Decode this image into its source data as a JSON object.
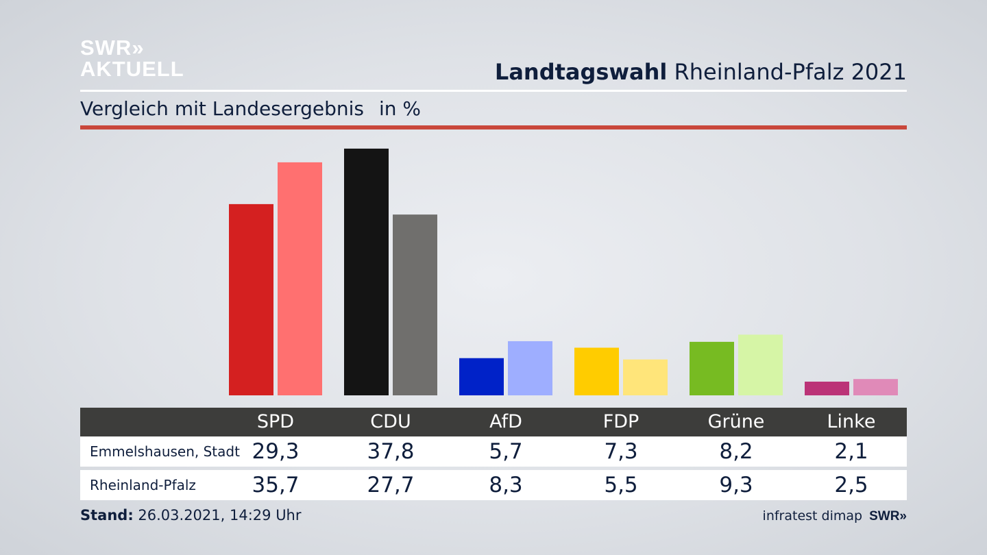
{
  "logo": {
    "line1": "SWR»",
    "line2": "AKTUELL"
  },
  "header": {
    "title_bold": "Landtagswahl",
    "title_rest": "Rheinland-Pfalz 2021"
  },
  "subheader": {
    "label": "Vergleich mit Landesergebnis",
    "unit": "in %"
  },
  "colors": {
    "accent_red": "#c9473b",
    "table_header": "#3d3d3b",
    "text": "#0f1e3c"
  },
  "chart_data": {
    "type": "bar",
    "categories": [
      "SPD",
      "CDU",
      "AfD",
      "FDP",
      "Grüne",
      "Linke"
    ],
    "series": [
      {
        "name": "Emmelshausen, Stadt",
        "values": [
          29.3,
          37.8,
          5.7,
          7.3,
          8.2,
          2.1
        ],
        "display": [
          "29,3",
          "37,8",
          "5,7",
          "7,3",
          "8,2",
          "2,1"
        ],
        "colors": [
          "#d42020",
          "#141414",
          "#0022c8",
          "#ffcc00",
          "#77bb22",
          "#bb3377"
        ]
      },
      {
        "name": "Rheinland-Pfalz",
        "values": [
          35.7,
          27.7,
          8.3,
          5.5,
          9.3,
          2.5
        ],
        "display": [
          "35,7",
          "27,7",
          "8,3",
          "5,5",
          "9,3",
          "2,5"
        ],
        "colors": [
          "#ff7070",
          "#706f6d",
          "#9eaeff",
          "#ffe57a",
          "#d6f5a6",
          "#e08ab8"
        ]
      }
    ],
    "ylim": [
      0,
      38
    ]
  },
  "footer": {
    "stand_label": "Stand:",
    "stand_value": "26.03.2021, 14:29 Uhr",
    "source": "infratest dimap",
    "brand": "SWR»"
  }
}
